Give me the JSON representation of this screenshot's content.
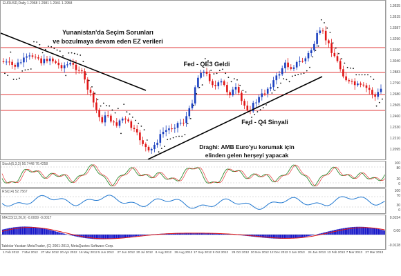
{
  "chart": {
    "ohlc_header": "EURUSD,Daily  1.2968  1.2981  1.2941  1.2958",
    "price_levels": [
      "1.3635",
      "1.3515",
      "1.3387",
      "1.3290",
      "1.3190",
      "1.3040",
      "1.2883",
      "1.2790",
      "1.2680",
      "1.2565",
      "1.2460",
      "1.2330",
      "1.2210",
      "1.2095"
    ],
    "annotations": {
      "greece": "Yunanistan'da Seçim Sorunları\nve bozulmaya devam eden EZ verileri",
      "qe3": "Fed - QE3 Geldi",
      "q4": "Fed - Q4 Sinyali",
      "draghi": "Draghi: AMB Euro'yu korumak için\nelinden gelen herşeyi yapacak"
    }
  },
  "indicators": {
    "stoch": {
      "label": "Stoch(5,3,3) 56.7448 76.4258",
      "levels": [
        "100",
        "80",
        "20",
        "0"
      ]
    },
    "rsi": {
      "label": "RSI(14) 52.7567",
      "levels": [
        "100",
        "70",
        "30",
        "0"
      ]
    },
    "macd": {
      "label": "MACD(12,26,9) -0.0009 -0.0017",
      "levels": [
        "0.0154",
        "0.00",
        "-0.0128"
      ]
    }
  },
  "footer": "Tablolar Yaratan MetaTrader, (C) 2001-2013, MetaQuotes Software Corp.",
  "dates": [
    "1 Feb 2012",
    "7 Mar 2012",
    "27 Mar 2012",
    "20 Apr 2012",
    "16 May 2012",
    "5 Jun 2012",
    "27 Jun 2012",
    "20 Jul 2012",
    "8 Aug 2012",
    "28 Aug 2012",
    "17 Sep 2012",
    "9 Oct 2012",
    "29 Oct 2012",
    "20 Nov 2012",
    "12 Dec 2012",
    "3 Jan 2013",
    "24 Jan 2013",
    "13 Feb 2013",
    "7 Mar 2013",
    "27 Mar 2013"
  ],
  "colors": {
    "bull": "#1a3fbf",
    "bear": "#e01616",
    "level_line": "#e23a3a",
    "sar": "#111111",
    "rsi": "#1f77d0",
    "stoch_main": "#2f8a2f",
    "stoch_signal": "#e01616",
    "macd_hist": "#1515c8",
    "macd_signal": "#e01616"
  }
}
